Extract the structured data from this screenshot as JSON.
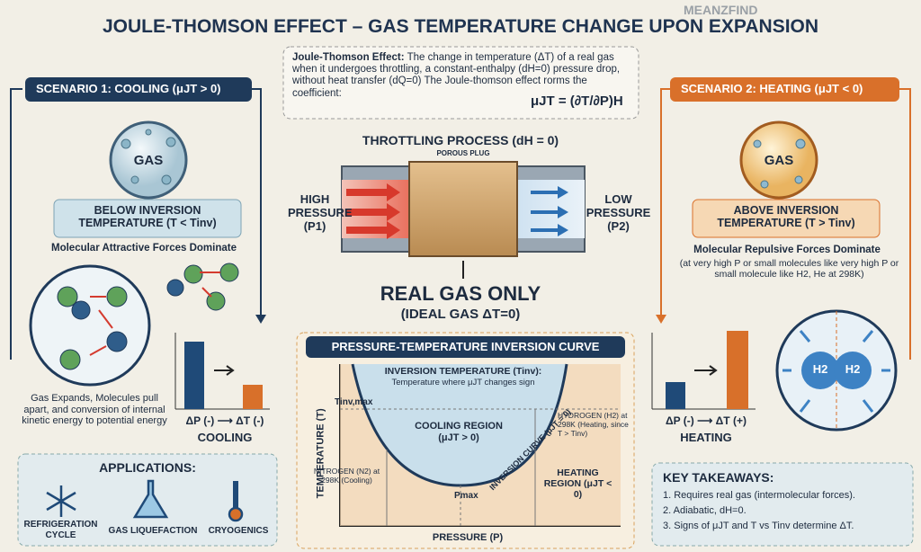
{
  "header": {
    "title": "JOULE-THOMSON EFFECT – GAS TEMPERATURE CHANGE UPON EXPANSION",
    "watermark": "MEANZFIND"
  },
  "definition": {
    "label": "Joule-Thomson Effect:",
    "text": "The change in temperature (ΔT) of a real gas when it undergoes throttling, a constant-enthalpy (dH=0) pressure drop, without heat transfer (dQ=0) The Joule-thomson effect rorms the coefficient:",
    "formula": "μJT = (∂T/∂P)H"
  },
  "scenario1": {
    "header": "SCENARIO 1: COOLING (μJT > 0)",
    "gas": "GAS",
    "condition": "BELOW INVERSION TEMPERATURE (T < Tinv)",
    "forces": "Molecular Attractive Forces Dominate",
    "explanation": "Gas Expands, Molecules pull apart, and conversion of internal kinetic energy to potential energy",
    "relation": "ΔP (-) ⟶ ΔT (-)",
    "result": "COOLING"
  },
  "applications": {
    "title": "APPLICATIONS:",
    "items": [
      "REFRIGERATION CYCLE",
      "GAS LIQUEFACTION",
      "CRYOGENICS"
    ]
  },
  "throttling": {
    "title": "THROTTLING PROCESS (dH = 0)",
    "plug": "POROUS PLUG",
    "high": "HIGH PRESSURE (P1)",
    "low": "LOW PRESSURE (P2)",
    "real": "REAL GAS ONLY",
    "ideal": "(IDEAL GAS ΔT=0)"
  },
  "scenario2": {
    "header": "SCENARIO 2: HEATING (μJT < 0)",
    "gas": "GAS",
    "condition": "ABOVE INVERSION TEMPERATURE (T > Tinv)",
    "forces": "Molecular Repulsive Forces Dominate",
    "note": "(at very high P or small molecules like very high P or small molecule like H2, He at 298K)",
    "molecules": [
      "H2",
      "H2"
    ],
    "relation": "ΔP (-) ⟶ ΔT (+)",
    "result": "HEATING"
  },
  "curve": {
    "title": "PRESSURE-TEMPERATURE INVERSION CURVE",
    "y_label": "TEMPERATURE (T)",
    "x_label": "PRESSURE (P)",
    "inversion_title": "INVERSION TEMPERATURE (Tinv):",
    "inversion_text": "Temperature where μJT changes sign",
    "tmax": "Tinv,max",
    "cooling": "COOLING REGION (μJT > 0)",
    "curve_label": "INVERSION CURVE (μJT = 0)",
    "hydrogen": "HYDROGEN (H2) at 298K (Heating, since T > Tinv)",
    "nitrogen": "NITROGEN (N2) at 298K (Cooling)",
    "pmax": "Pmax",
    "heating": "HEATING REGION (μJT < 0)"
  },
  "takeaways": {
    "title": "KEY TAKEAWAYS:",
    "items": [
      "1. Requires real gas (intermolecular forces).",
      "2. Adiabatic, dH=0.",
      "3. Signs of μJT and T vs Tinv determine ΔT."
    ]
  }
}
